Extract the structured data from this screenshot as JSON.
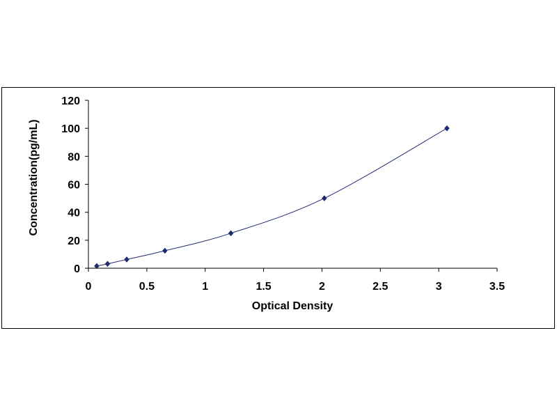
{
  "chart_data": {
    "type": "scatter",
    "title": "",
    "xlabel": "Optical Density",
    "ylabel": "Concentration(pg/mL)",
    "xlim": [
      0,
      3.5
    ],
    "ylim": [
      0,
      120
    ],
    "xticks": [
      "0",
      "0.5",
      "1",
      "1.5",
      "2",
      "2.5",
      "3",
      "3.5"
    ],
    "yticks": [
      "0",
      "20",
      "40",
      "60",
      "80",
      "100",
      "120"
    ],
    "grid": false,
    "legend": "none",
    "series": [
      {
        "points": [
          {
            "x": 0.071,
            "y": 1.56
          },
          {
            "x": 0.164,
            "y": 3.12
          },
          {
            "x": 0.328,
            "y": 6.25
          },
          {
            "x": 0.655,
            "y": 12.5
          },
          {
            "x": 1.22,
            "y": 25
          },
          {
            "x": 2.02,
            "y": 50
          },
          {
            "x": 3.07,
            "y": 100
          }
        ],
        "trendline": "smooth",
        "color": "#1f2a6b"
      }
    ]
  }
}
